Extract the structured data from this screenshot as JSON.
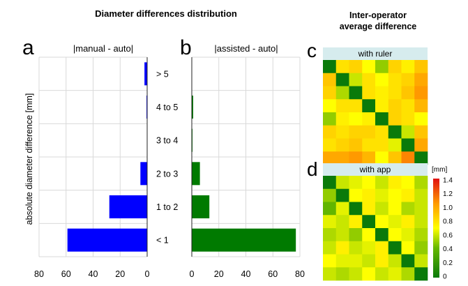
{
  "header": {
    "main_title": "Diameter differences distribution",
    "right_title_line1": "Inter-operator",
    "right_title_line2": "average difference"
  },
  "panels": {
    "a": {
      "letter": "a",
      "subtitle": "|manual - auto|"
    },
    "b": {
      "letter": "b",
      "subtitle": "|assisted - auto|"
    },
    "c": {
      "letter": "c",
      "subtitle": "with ruler"
    },
    "d": {
      "letter": "d",
      "subtitle": "with app"
    }
  },
  "colorbar": {
    "unit": "[mm]",
    "ticks": [
      "1.4",
      "1.2",
      "1.0",
      "0.8",
      "0.6",
      "0.4",
      "0.2",
      "0"
    ]
  },
  "colors": {
    "manual_bar": "#0000ff",
    "assisted_bar": "#007a00",
    "grid": "#d9d9d9",
    "heatmap_title_bg": "#d6ecee",
    "scale_low": "#0a7a0a",
    "scale_mid": "#ffff00",
    "scale_high": "#e01010"
  },
  "chart_data": [
    {
      "type": "bar",
      "orientation": "horizontal",
      "panel": "a",
      "title": "|manual - auto|",
      "ylabel": "absolute diameter difference [mm]",
      "categories": [
        "< 1",
        "1 to 2",
        "2 to 3",
        "3 to 4",
        "4 to 5",
        "> 5"
      ],
      "values": [
        59,
        28,
        5,
        0,
        0.5,
        2
      ],
      "xlim": [
        80,
        0
      ],
      "x_reversed": true,
      "xticks": [
        "80",
        "60",
        "40",
        "20",
        "0"
      ],
      "grid": true
    },
    {
      "type": "bar",
      "orientation": "horizontal",
      "panel": "b",
      "title": "|assisted - auto|",
      "categories": [
        "< 1",
        "1 to 2",
        "2 to 3",
        "3 to 4",
        "4 to 5",
        "> 5"
      ],
      "values": [
        77,
        13,
        6,
        0.5,
        1,
        0
      ],
      "xlim": [
        0,
        80
      ],
      "xticks": [
        "0",
        "20",
        "40",
        "60",
        "80"
      ],
      "grid": true
    },
    {
      "type": "heatmap",
      "panel": "c",
      "title": "with ruler",
      "scale": [
        0,
        1.4
      ],
      "values": [
        [
          0,
          0.8,
          0.85,
          0.7,
          0.5,
          0.85,
          0.75,
          0.9
        ],
        [
          0.9,
          0,
          0.6,
          0.8,
          0.7,
          0.8,
          0.85,
          1.0
        ],
        [
          0.85,
          0.55,
          0,
          0.8,
          0.75,
          0.8,
          0.9,
          1.05
        ],
        [
          0.7,
          0.8,
          0.8,
          0,
          0.75,
          0.85,
          0.8,
          0.95
        ],
        [
          0.5,
          0.75,
          0.7,
          0.75,
          0,
          0.85,
          0.8,
          0.7
        ],
        [
          0.85,
          0.8,
          0.85,
          0.85,
          0.8,
          0,
          0.6,
          0.9
        ],
        [
          0.8,
          0.85,
          0.9,
          0.8,
          0.8,
          0.65,
          0,
          1.0
        ],
        [
          1.0,
          1.0,
          1.05,
          0.95,
          0.7,
          0.9,
          1.1,
          0
        ]
      ]
    },
    {
      "type": "heatmap",
      "panel": "d",
      "title": "with app",
      "scale": [
        0,
        1.4
      ],
      "values": [
        [
          0,
          0.6,
          0.65,
          0.7,
          0.6,
          0.75,
          0.7,
          0.55
        ],
        [
          0.5,
          0,
          0.7,
          0.75,
          0.65,
          0.7,
          0.75,
          0.6
        ],
        [
          0.4,
          0.65,
          0,
          0.75,
          0.6,
          0.7,
          0.55,
          0.6
        ],
        [
          0.65,
          0.6,
          0.75,
          0,
          0.7,
          0.65,
          0.75,
          0.6
        ],
        [
          0.55,
          0.6,
          0.5,
          0.7,
          0,
          0.7,
          0.65,
          0.55
        ],
        [
          0.6,
          0.75,
          0.6,
          0.65,
          0.75,
          0,
          0.7,
          0.5
        ],
        [
          0.7,
          0.65,
          0.65,
          0.6,
          0.75,
          0.6,
          0,
          0.6
        ],
        [
          0.6,
          0.55,
          0.6,
          0.7,
          0.6,
          0.65,
          0.55,
          0
        ]
      ]
    }
  ]
}
